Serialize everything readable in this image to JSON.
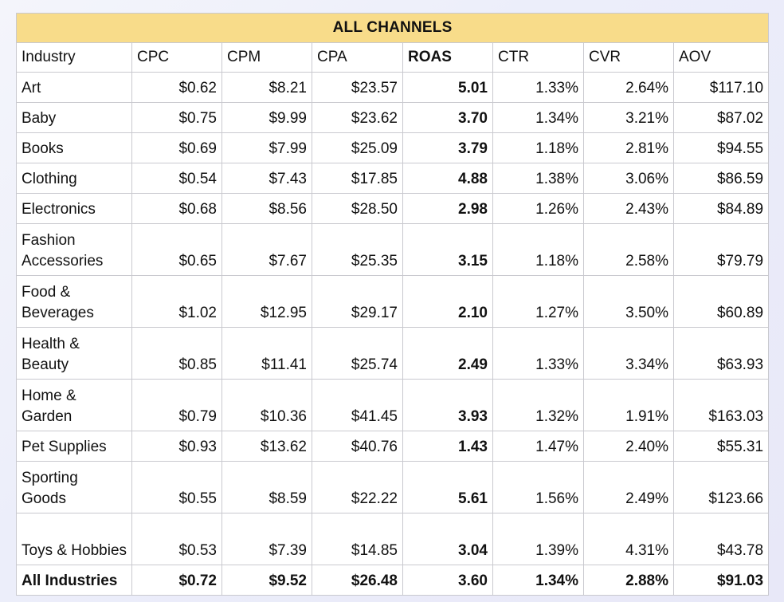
{
  "title": "ALL CHANNELS",
  "columns": [
    "Industry",
    "CPC",
    "CPM",
    "CPA",
    "ROAS",
    "CTR",
    "CVR",
    "AOV"
  ],
  "rows": [
    {
      "industry": "Art",
      "cpc": "$0.62",
      "cpm": "$8.21",
      "cpa": "$23.57",
      "roas": "5.01",
      "ctr": "1.33%",
      "cvr": "2.64%",
      "aov": "$117.10"
    },
    {
      "industry": "Baby",
      "cpc": "$0.75",
      "cpm": "$9.99",
      "cpa": "$23.62",
      "roas": "3.70",
      "ctr": "1.34%",
      "cvr": "3.21%",
      "aov": "$87.02"
    },
    {
      "industry": "Books",
      "cpc": "$0.69",
      "cpm": "$7.99",
      "cpa": "$25.09",
      "roas": "3.79",
      "ctr": "1.18%",
      "cvr": "2.81%",
      "aov": "$94.55"
    },
    {
      "industry": "Clothing",
      "cpc": "$0.54",
      "cpm": "$7.43",
      "cpa": "$17.85",
      "roas": "4.88",
      "ctr": "1.38%",
      "cvr": "3.06%",
      "aov": "$86.59"
    },
    {
      "industry": "Electronics",
      "cpc": "$0.68",
      "cpm": "$8.56",
      "cpa": "$28.50",
      "roas": "2.98",
      "ctr": "1.26%",
      "cvr": "2.43%",
      "aov": "$84.89"
    },
    {
      "industry": "Fashion Accessories",
      "cpc": "$0.65",
      "cpm": "$7.67",
      "cpa": "$25.35",
      "roas": "3.15",
      "ctr": "1.18%",
      "cvr": "2.58%",
      "aov": "$79.79"
    },
    {
      "industry": "Food & Beverages",
      "cpc": "$1.02",
      "cpm": "$12.95",
      "cpa": "$29.17",
      "roas": "2.10",
      "ctr": "1.27%",
      "cvr": "3.50%",
      "aov": "$60.89"
    },
    {
      "industry": "Health & Beauty",
      "cpc": "$0.85",
      "cpm": "$11.41",
      "cpa": "$25.74",
      "roas": "2.49",
      "ctr": "1.33%",
      "cvr": "3.34%",
      "aov": "$63.93"
    },
    {
      "industry": "Home & Garden",
      "cpc": "$0.79",
      "cpm": "$10.36",
      "cpa": "$41.45",
      "roas": "3.93",
      "ctr": "1.32%",
      "cvr": "1.91%",
      "aov": "$163.03"
    },
    {
      "industry": "Pet Supplies",
      "cpc": "$0.93",
      "cpm": "$13.62",
      "cpa": "$40.76",
      "roas": "1.43",
      "ctr": "1.47%",
      "cvr": "2.40%",
      "aov": "$55.31"
    },
    {
      "industry": "Sporting Goods",
      "cpc": "$0.55",
      "cpm": "$8.59",
      "cpa": "$22.22",
      "roas": "5.61",
      "ctr": "1.56%",
      "cvr": "2.49%",
      "aov": "$123.66"
    },
    {
      "industry": "Toys & Hobbies",
      "cpc": "$0.53",
      "cpm": "$7.39",
      "cpa": "$14.85",
      "roas": "3.04",
      "ctr": "1.39%",
      "cvr": "4.31%",
      "aov": "$43.78"
    }
  ],
  "total": {
    "industry": "All Industries",
    "cpc": "$0.72",
    "cpm": "$9.52",
    "cpa": "$26.48",
    "roas": "3.60",
    "ctr": "1.34%",
    "cvr": "2.88%",
    "aov": "$91.03"
  },
  "colors": {
    "title_bg": "#f8dc8a",
    "border": "#c9c9cf"
  }
}
